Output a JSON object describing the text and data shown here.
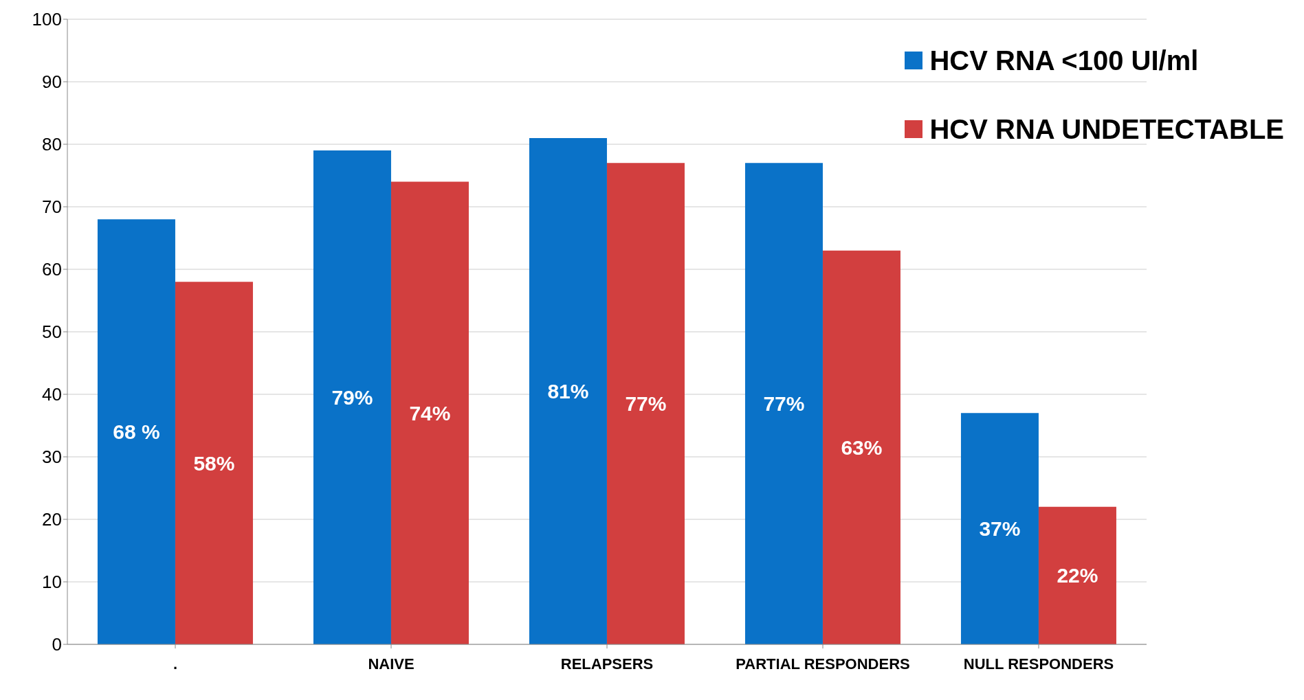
{
  "chart_data": {
    "type": "bar",
    "categories": [
      ".",
      "NAIVE",
      "RELAPSERS",
      "PARTIAL RESPONDERS",
      "NULL RESPONDERS"
    ],
    "series": [
      {
        "name": "HCV RNA <100 UI/ml",
        "color": "#0a72c8",
        "values": [
          68,
          79,
          81,
          77,
          37
        ],
        "value_labels": [
          "68 %",
          "79%",
          "81%",
          "77%",
          "37%"
        ]
      },
      {
        "name": "HCV RNA UNDETECTABLE",
        "color": "#d23f3f",
        "values": [
          58,
          74,
          77,
          63,
          22
        ],
        "value_labels": [
          "58%",
          "74%",
          "77%",
          "63%",
          "22%"
        ]
      }
    ],
    "ylim": [
      0,
      100
    ],
    "yticks": [
      0,
      10,
      20,
      30,
      40,
      50,
      60,
      70,
      80,
      90,
      100
    ],
    "grid": "y",
    "legend": "top right"
  }
}
